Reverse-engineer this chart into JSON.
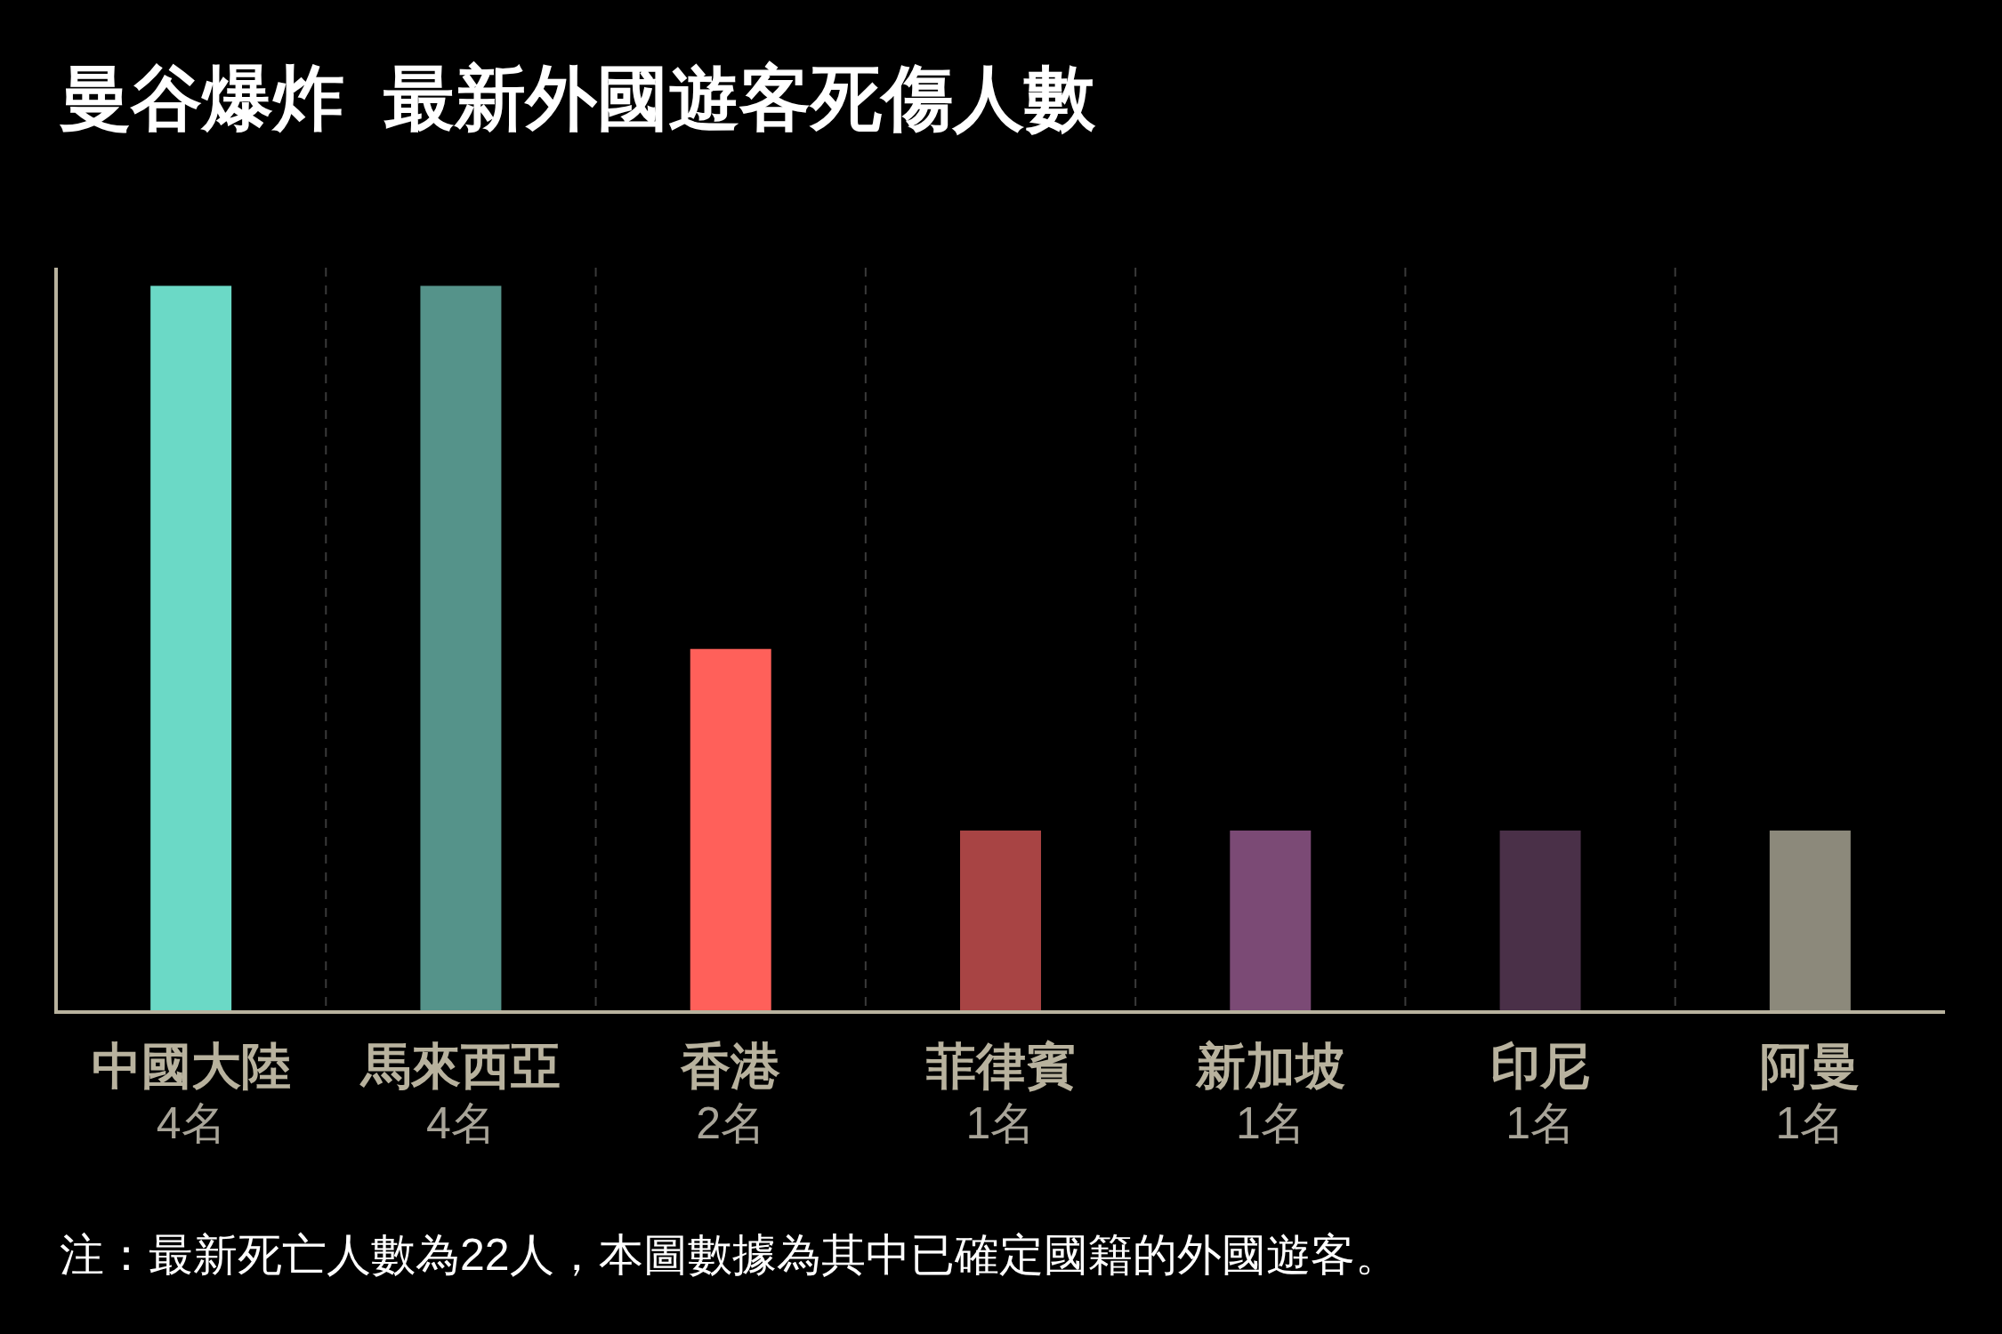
{
  "chart_data": {
    "type": "bar",
    "title": "曼谷爆炸  最新外國遊客死傷人數",
    "categories": [
      "中國大陸",
      "馬來西亞",
      "香港",
      "菲律賓",
      "新加坡",
      "印尼",
      "阿曼"
    ],
    "values": [
      4,
      4,
      2,
      1,
      1,
      1,
      1
    ],
    "colors": [
      "#6bd9c6",
      "#55938a",
      "#ff605a",
      "#a84444",
      "#7b4a75",
      "#4a3048",
      "#8c897b"
    ],
    "value_labels": [
      "4名",
      "4名",
      "2名",
      "1名",
      "1名",
      "1名",
      "1名"
    ],
    "ylim": [
      0,
      4.1
    ],
    "tick_labels": "x",
    "grid": "x",
    "annotations": [
      "注：最新死亡人數為22人，本圖數據為其中已確定國籍的外國遊客。"
    ]
  }
}
